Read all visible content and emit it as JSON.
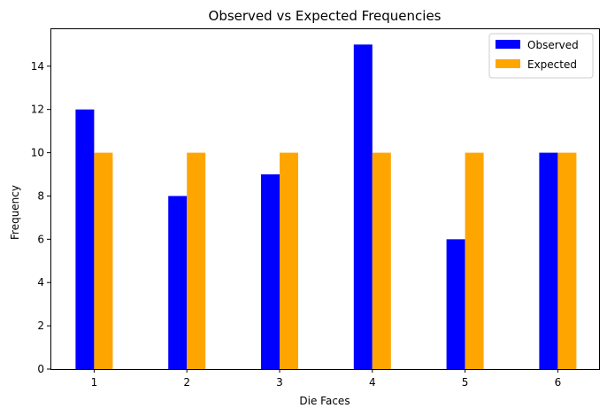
{
  "chart_data": {
    "type": "bar",
    "title": "Observed vs Expected Frequencies",
    "xlabel": "Die Faces",
    "ylabel": "Frequency",
    "categories": [
      "1",
      "2",
      "3",
      "4",
      "5",
      "6"
    ],
    "series": [
      {
        "name": "Observed",
        "color": "#0000ff",
        "values": [
          12,
          8,
          9,
          15,
          6,
          10
        ]
      },
      {
        "name": "Expected",
        "color": "#ffa500",
        "values": [
          10,
          10,
          10,
          10,
          10,
          10
        ]
      }
    ],
    "ylim": [
      0,
      15.75
    ],
    "yticks": [
      0,
      2,
      4,
      6,
      8,
      10,
      12,
      14
    ],
    "grid": false,
    "legend_position": "top-right"
  }
}
